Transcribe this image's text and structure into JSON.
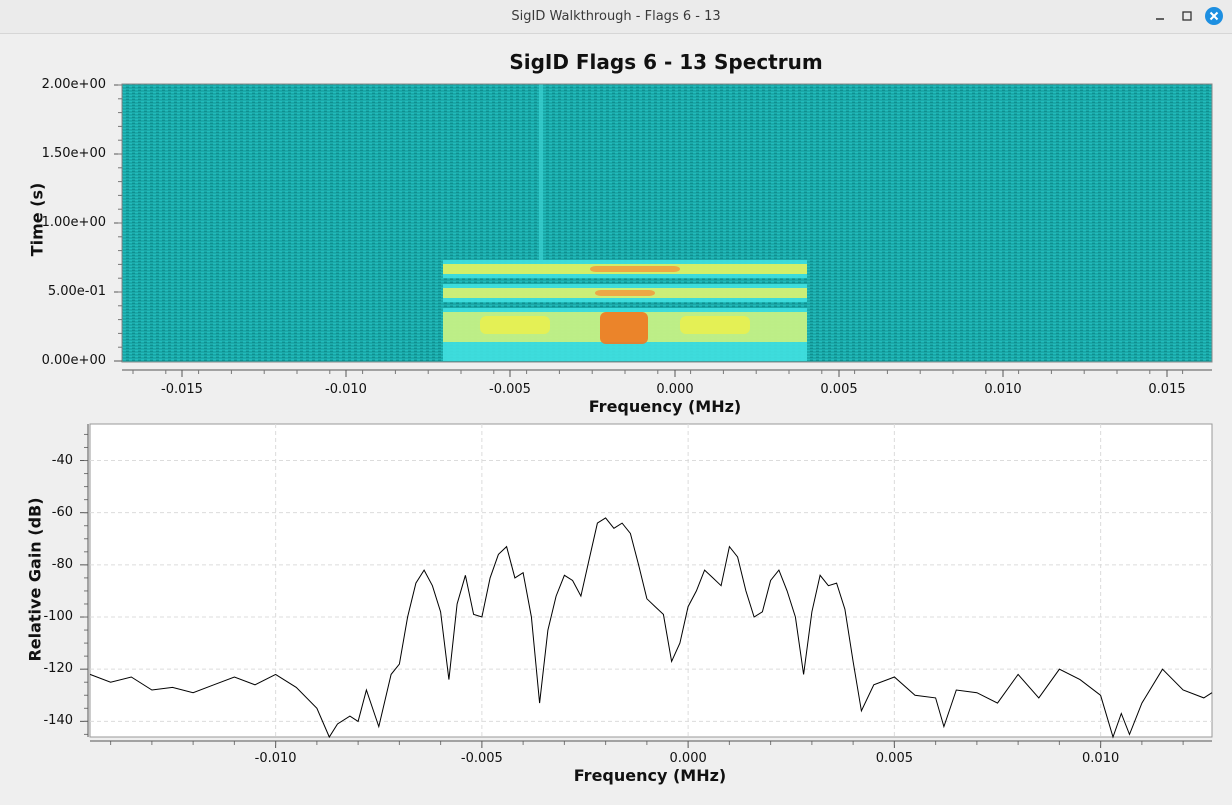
{
  "window": {
    "title": "SigID Walkthrough - Flags 6 - 13",
    "minimize_icon": "minimize-icon",
    "maximize_icon": "maximize-icon",
    "close_icon": "close-icon"
  },
  "waterfall": {
    "title": "SigID Flags 6 - 13 Spectrum",
    "ylabel": "Time (s)",
    "xlabel": "Frequency (MHz)",
    "y_ticks": [
      "0.00e+00",
      "5.00e-01",
      "1.00e+00",
      "1.50e+00",
      "2.00e+00"
    ],
    "x_ticks": [
      "-0.015",
      "-0.010",
      "-0.005",
      "0.000",
      "0.005",
      "0.010",
      "0.015"
    ],
    "colors": {
      "noise": "#1aa8a8",
      "signal_low": "#40e0e0",
      "signal_mid": "#e8f050",
      "signal_high": "#f07820"
    }
  },
  "chart_data": {
    "type": "line",
    "xlabel": "Frequency (MHz)",
    "ylabel": "Relative Gain (dB)",
    "xlim": [
      -0.0145,
      0.0127
    ],
    "ylim": [
      -146,
      -26
    ],
    "x_ticks": [
      "-0.010",
      "-0.005",
      "0.000",
      "0.005",
      "0.010"
    ],
    "y_ticks": [
      "-40",
      "-60",
      "-80",
      "-100",
      "-120",
      "-140"
    ],
    "grid": true,
    "series": [
      {
        "x": [
          -0.0145,
          -0.014,
          -0.0135,
          -0.013,
          -0.0125,
          -0.012,
          -0.0115,
          -0.011,
          -0.0105,
          -0.01,
          -0.0095,
          -0.009,
          -0.0087,
          -0.0085,
          -0.0082,
          -0.008,
          -0.0078,
          -0.0075,
          -0.0072,
          -0.007,
          -0.0068,
          -0.0066,
          -0.0064,
          -0.0062,
          -0.006,
          -0.0058,
          -0.0056,
          -0.0054,
          -0.0052,
          -0.005,
          -0.0048,
          -0.0046,
          -0.0044,
          -0.0042,
          -0.004,
          -0.0038,
          -0.0036,
          -0.0034,
          -0.0032,
          -0.003,
          -0.0028,
          -0.0026,
          -0.0024,
          -0.0022,
          -0.002,
          -0.0018,
          -0.0016,
          -0.0014,
          -0.0012,
          -0.001,
          -0.0008,
          -0.0006,
          -0.0004,
          -0.0002,
          0.0,
          0.0002,
          0.0004,
          0.0006,
          0.0008,
          0.001,
          0.0012,
          0.0014,
          0.0016,
          0.0018,
          0.002,
          0.0022,
          0.0024,
          0.0026,
          0.0028,
          0.003,
          0.0032,
          0.0034,
          0.0036,
          0.0038,
          0.004,
          0.0042,
          0.0045,
          0.005,
          0.0055,
          0.006,
          0.0062,
          0.0065,
          0.007,
          0.0075,
          0.008,
          0.0085,
          0.009,
          0.0095,
          0.01,
          0.0103,
          0.0105,
          0.0107,
          0.011,
          0.0115,
          0.012,
          0.0125,
          0.0127
        ],
        "y": [
          -122,
          -125,
          -123,
          -128,
          -127,
          -129,
          -126,
          -123,
          -126,
          -122,
          -127,
          -135,
          -146,
          -141,
          -138,
          -140,
          -128,
          -142,
          -122,
          -118,
          -100,
          -87,
          -82,
          -88,
          -98,
          -124,
          -95,
          -84,
          -99,
          -100,
          -85,
          -76,
          -73,
          -85,
          -83,
          -100,
          -133,
          -105,
          -92,
          -84,
          -86,
          -92,
          -78,
          -64,
          -62,
          -66,
          -64,
          -68,
          -80,
          -93,
          -96,
          -99,
          -117,
          -110,
          -96,
          -90,
          -82,
          -85,
          -88,
          -73,
          -77,
          -90,
          -100,
          -98,
          -86,
          -82,
          -90,
          -100,
          -122,
          -98,
          -84,
          -88,
          -87,
          -97,
          -117,
          -136,
          -126,
          -123,
          -130,
          -131,
          -142,
          -128,
          -129,
          -133,
          -122,
          -131,
          -120,
          -124,
          -130,
          -146,
          -137,
          -145,
          -133,
          -120,
          -128,
          -131,
          -129
        ]
      }
    ]
  }
}
